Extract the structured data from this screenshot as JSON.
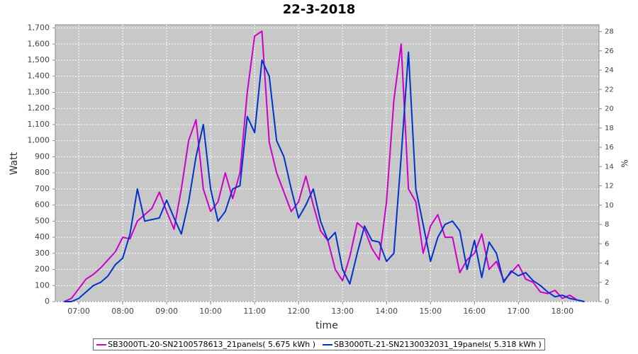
{
  "chart_data": {
    "type": "line",
    "title": "22-3-2018",
    "x_label": "time",
    "y_label": "Watt",
    "y2_label": "%",
    "x": [
      "06:40",
      "06:50",
      "07:00",
      "07:10",
      "07:20",
      "07:30",
      "07:40",
      "07:50",
      "08:00",
      "08:10",
      "08:20",
      "08:30",
      "08:40",
      "08:50",
      "09:00",
      "09:10",
      "09:20",
      "09:30",
      "09:40",
      "09:50",
      "10:00",
      "10:10",
      "10:20",
      "10:30",
      "10:40",
      "10:50",
      "11:00",
      "11:10",
      "11:20",
      "11:30",
      "11:40",
      "11:50",
      "12:00",
      "12:10",
      "12:20",
      "12:30",
      "12:40",
      "12:50",
      "13:00",
      "13:10",
      "13:20",
      "13:30",
      "13:40",
      "13:50",
      "14:00",
      "14:10",
      "14:20",
      "14:30",
      "14:40",
      "14:50",
      "15:00",
      "15:10",
      "15:20",
      "15:30",
      "15:40",
      "15:50",
      "16:00",
      "16:10",
      "16:20",
      "16:30",
      "16:40",
      "16:50",
      "17:00",
      "17:10",
      "17:20",
      "17:30",
      "17:40",
      "17:50",
      "18:00",
      "18:10",
      "18:20",
      "18:30"
    ],
    "series": [
      {
        "name": "SB3000TL-20-SN2100578613_21panels( 5.675 kWh )",
        "color": "#cc00cc",
        "values": [
          0,
          20,
          80,
          140,
          170,
          210,
          260,
          310,
          400,
          390,
          500,
          540,
          580,
          680,
          560,
          450,
          700,
          1000,
          1130,
          700,
          560,
          620,
          800,
          640,
          800,
          1300,
          1650,
          1680,
          990,
          800,
          680,
          560,
          620,
          780,
          600,
          440,
          380,
          200,
          130,
          280,
          490,
          450,
          330,
          260,
          620,
          1250,
          1600,
          700,
          620,
          300,
          470,
          540,
          400,
          400,
          180,
          260,
          300,
          420,
          200,
          250,
          130,
          180,
          230,
          140,
          120,
          60,
          50,
          70,
          20,
          40,
          10,
          0
        ]
      },
      {
        "name": "SB3000TL-21-SN2130032031_19panels( 5.318 kWh )",
        "color": "#0033cc",
        "values": [
          0,
          0,
          20,
          60,
          100,
          120,
          160,
          230,
          270,
          420,
          700,
          500,
          510,
          520,
          630,
          520,
          420,
          620,
          900,
          1100,
          700,
          500,
          560,
          700,
          720,
          1150,
          1050,
          1500,
          1400,
          1000,
          900,
          700,
          520,
          600,
          700,
          500,
          380,
          430,
          200,
          110,
          300,
          470,
          380,
          370,
          250,
          300,
          900,
          1550,
          700,
          480,
          250,
          400,
          480,
          500,
          440,
          200,
          380,
          150,
          370,
          300,
          120,
          190,
          160,
          180,
          130,
          100,
          60,
          30,
          40,
          20,
          10,
          0
        ]
      }
    ],
    "xlim": [
      "06:28",
      "18:50"
    ],
    "xticks": [
      "07:00",
      "08:00",
      "09:00",
      "10:00",
      "11:00",
      "12:00",
      "13:00",
      "14:00",
      "15:00",
      "16:00",
      "17:00",
      "18:00"
    ],
    "ylim": [
      0,
      1720
    ],
    "yticks": [
      0,
      100,
      200,
      300,
      400,
      500,
      600,
      700,
      800,
      900,
      {
        "value": 1000,
        "label": "1,000"
      },
      {
        "value": 1100,
        "label": "1,100"
      },
      {
        "value": 1200,
        "label": "1,200"
      },
      {
        "value": 1300,
        "label": "1,300"
      },
      {
        "value": 1400,
        "label": "1,400"
      },
      {
        "value": 1500,
        "label": "1,500"
      },
      {
        "value": 1600,
        "label": "1,600"
      },
      {
        "value": 1700,
        "label": "1,700"
      }
    ],
    "y2lim": [
      0,
      28.7
    ],
    "y2ticks": [
      0,
      2,
      4,
      6,
      8,
      10,
      12,
      14,
      16,
      18,
      20,
      22,
      24,
      26,
      28
    ],
    "grid": true,
    "background": "#c8c8c8"
  }
}
